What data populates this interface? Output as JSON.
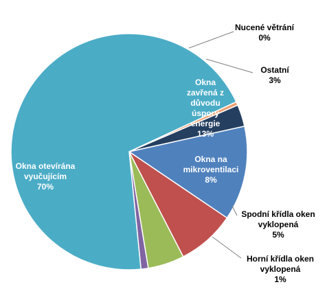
{
  "chart_data": {
    "type": "pie",
    "start_angle_deg": 65,
    "direction": "clockwise",
    "slices": [
      {
        "label": [
          "Nucené větrání",
          "0%"
        ],
        "value": 0.5,
        "color": "#f0a070",
        "label_position": "outside"
      },
      {
        "label": [
          "Ostatní",
          "3%"
        ],
        "value": 3,
        "color": "#253f60",
        "label_position": "outside"
      },
      {
        "label": [
          "Okna",
          "zavřená z",
          "důvodu",
          "úspory",
          "energie",
          "13%"
        ],
        "value": 13,
        "color": "#4f81bd",
        "label_position": "inside"
      },
      {
        "label": [
          "Okna na",
          "mikroventilaci",
          "8%"
        ],
        "value": 8,
        "color": "#c0504d",
        "label_position": "inside"
      },
      {
        "label": [
          "Spodní křídla oken",
          "vyklopená",
          "5%"
        ],
        "value": 5,
        "color": "#9bbb59",
        "label_position": "outside"
      },
      {
        "label": [
          "Horní křídla oken",
          "vyklopená",
          "1%"
        ],
        "value": 1,
        "color": "#8064a2",
        "label_position": "outside"
      },
      {
        "label": [
          "Okna otevírána",
          "vyučujícím",
          "70%"
        ],
        "value": 70,
        "color": "#4bacc6",
        "label_position": "inside"
      }
    ]
  }
}
